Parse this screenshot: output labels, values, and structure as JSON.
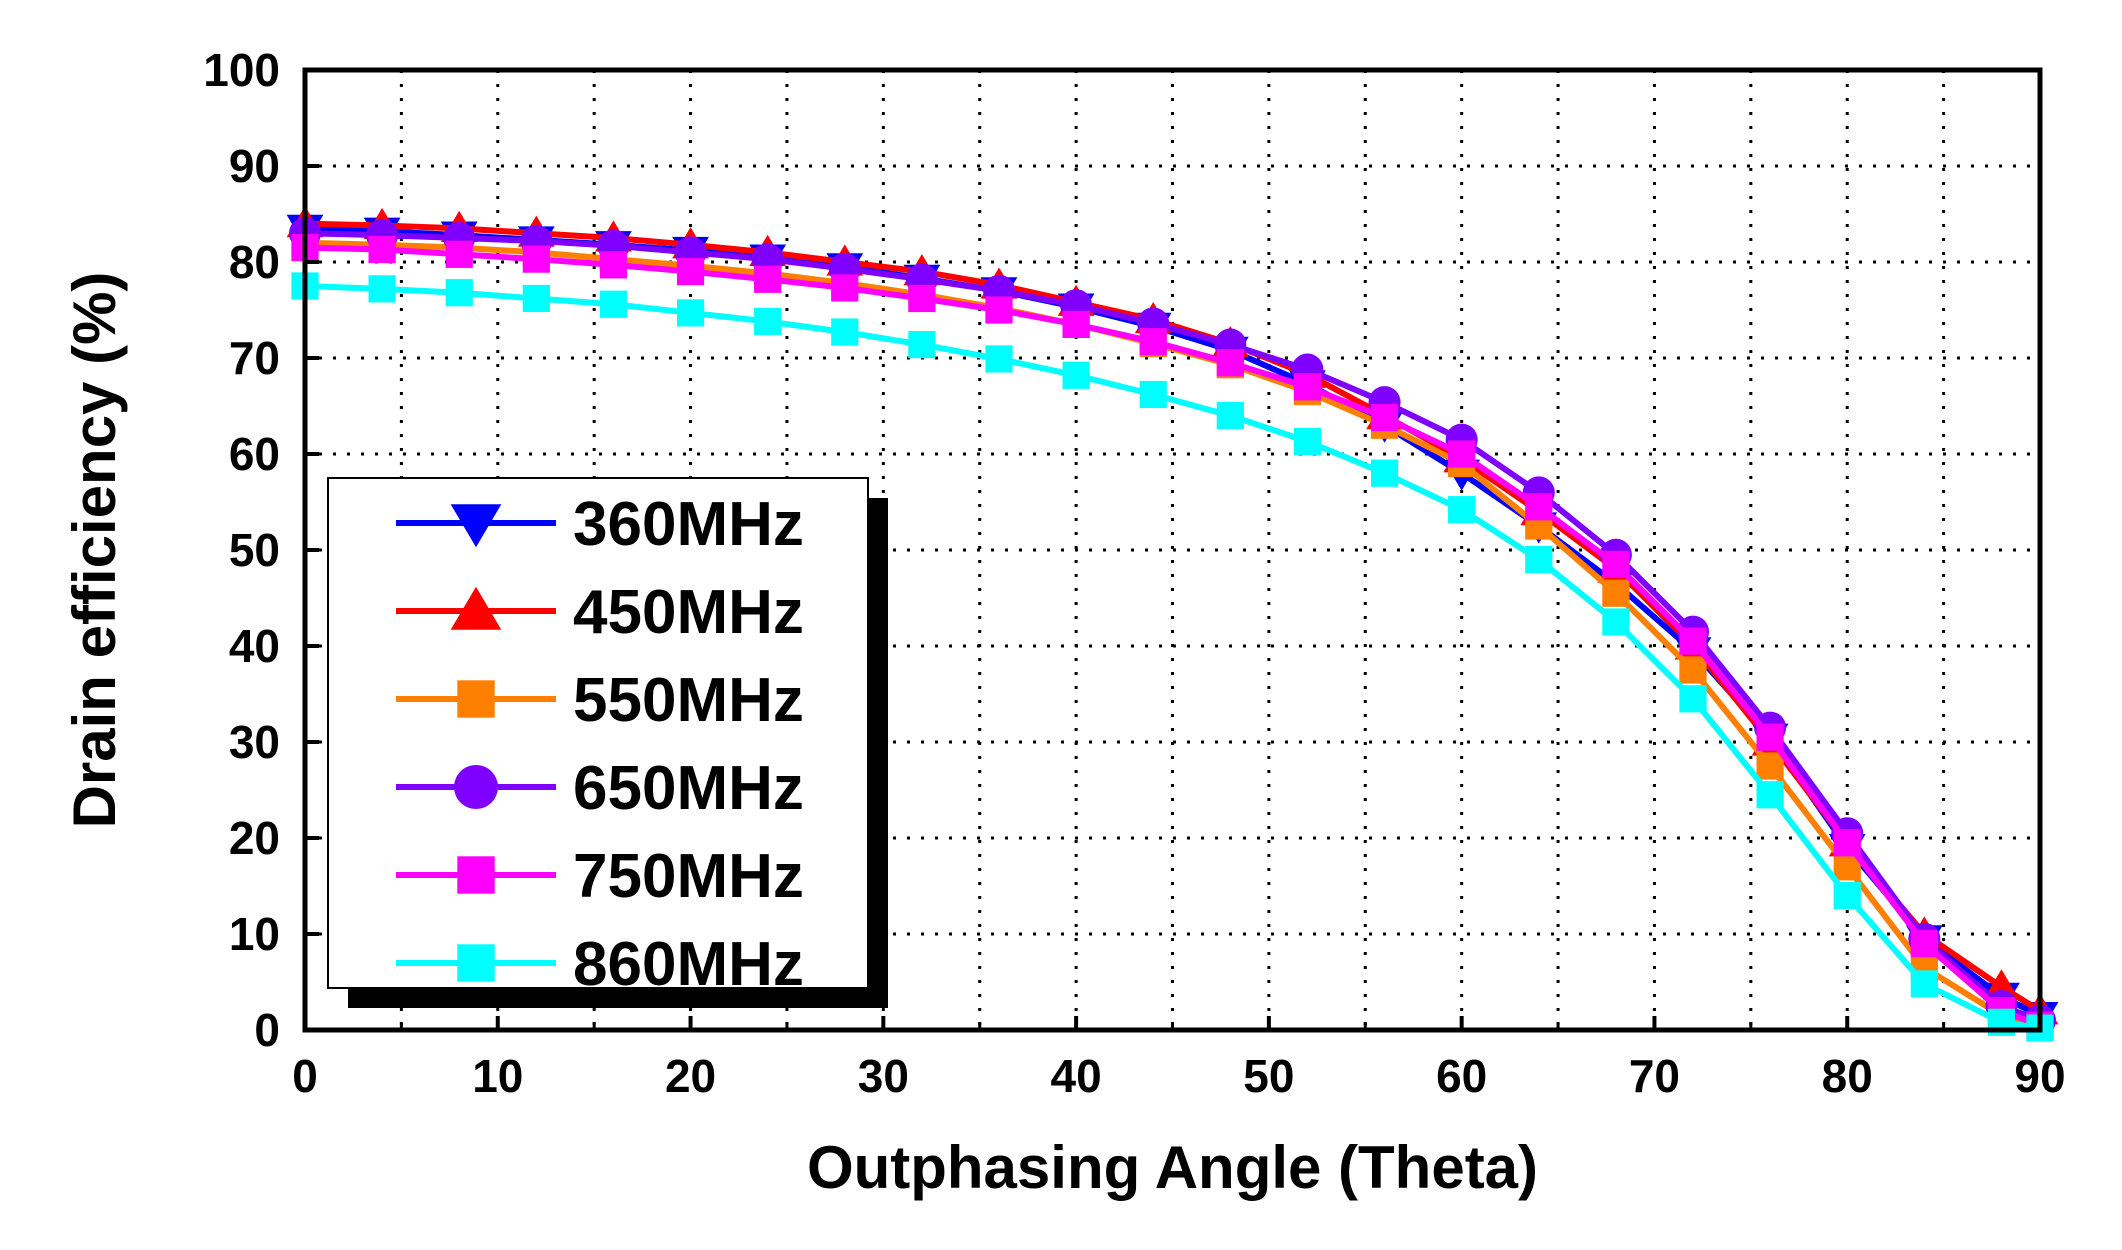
{
  "chart_data": {
    "type": "line",
    "xlabel": "Outphasing Angle (Theta)",
    "ylabel": "Drain efficiency (%)",
    "xlim": [
      0,
      90
    ],
    "ylim": [
      0,
      100
    ],
    "xticks": [
      0,
      10,
      20,
      30,
      40,
      50,
      60,
      70,
      80,
      90
    ],
    "yticks": [
      0,
      10,
      20,
      30,
      40,
      50,
      60,
      70,
      80,
      90,
      100
    ],
    "grid": true,
    "legend_position": "bottom-left",
    "x": [
      0,
      4,
      8,
      12,
      16,
      20,
      24,
      28,
      32,
      36,
      40,
      44,
      48,
      52,
      56,
      60,
      64,
      68,
      72,
      76,
      80,
      84,
      88,
      90
    ],
    "series": [
      {
        "name": "360MHz",
        "color": "#0000ff",
        "marker": "triangle-down",
        "values": [
          83.5,
          83.2,
          82.8,
          82.3,
          81.8,
          81.2,
          80.4,
          79.5,
          78.3,
          77.0,
          75.3,
          73.3,
          70.8,
          67.3,
          63.0,
          58.0,
          52.5,
          46.5,
          39.5,
          30.5,
          19.0,
          9.5,
          3.5,
          1.5
        ]
      },
      {
        "name": "450MHz",
        "color": "#ff0000",
        "marker": "triangle-up",
        "values": [
          84.0,
          83.8,
          83.5,
          83.0,
          82.5,
          81.8,
          81.0,
          80.0,
          79.0,
          77.6,
          75.8,
          74.0,
          71.5,
          68.3,
          64.0,
          59.5,
          54.0,
          48.0,
          40.0,
          30.0,
          19.5,
          10.0,
          4.5,
          2.0
        ]
      },
      {
        "name": "550MHz",
        "color": "#ff7f00",
        "marker": "square",
        "values": [
          82.0,
          81.8,
          81.5,
          81.0,
          80.3,
          79.6,
          78.8,
          77.8,
          76.6,
          75.2,
          73.5,
          71.5,
          69.3,
          66.5,
          63.0,
          59.0,
          52.5,
          45.5,
          37.5,
          27.5,
          17.0,
          6.5,
          1.5,
          0.5
        ]
      },
      {
        "name": "650MHz",
        "color": "#8000ff",
        "marker": "circle",
        "values": [
          83.0,
          82.8,
          82.5,
          82.2,
          81.7,
          81.0,
          80.3,
          79.3,
          78.2,
          77.0,
          75.5,
          73.6,
          71.4,
          68.8,
          65.4,
          61.5,
          56.0,
          49.5,
          41.5,
          31.5,
          20.5,
          9.5,
          2.5,
          1.0
        ]
      },
      {
        "name": "750MHz",
        "color": "#ff00ff",
        "marker": "square",
        "values": [
          81.5,
          81.3,
          80.8,
          80.3,
          79.7,
          79.0,
          78.2,
          77.3,
          76.2,
          75.0,
          73.5,
          71.7,
          69.5,
          67.0,
          63.8,
          60.0,
          54.5,
          48.5,
          40.5,
          30.5,
          19.5,
          9.0,
          2.0,
          0.5
        ]
      },
      {
        "name": "860MHz",
        "color": "#00ffff",
        "marker": "square",
        "values": [
          77.5,
          77.2,
          76.8,
          76.2,
          75.6,
          74.7,
          73.8,
          72.7,
          71.4,
          69.9,
          68.2,
          66.2,
          64.0,
          61.3,
          58.0,
          54.2,
          49.0,
          42.5,
          34.5,
          24.5,
          14.0,
          4.8,
          0.8,
          0.2
        ]
      }
    ]
  }
}
